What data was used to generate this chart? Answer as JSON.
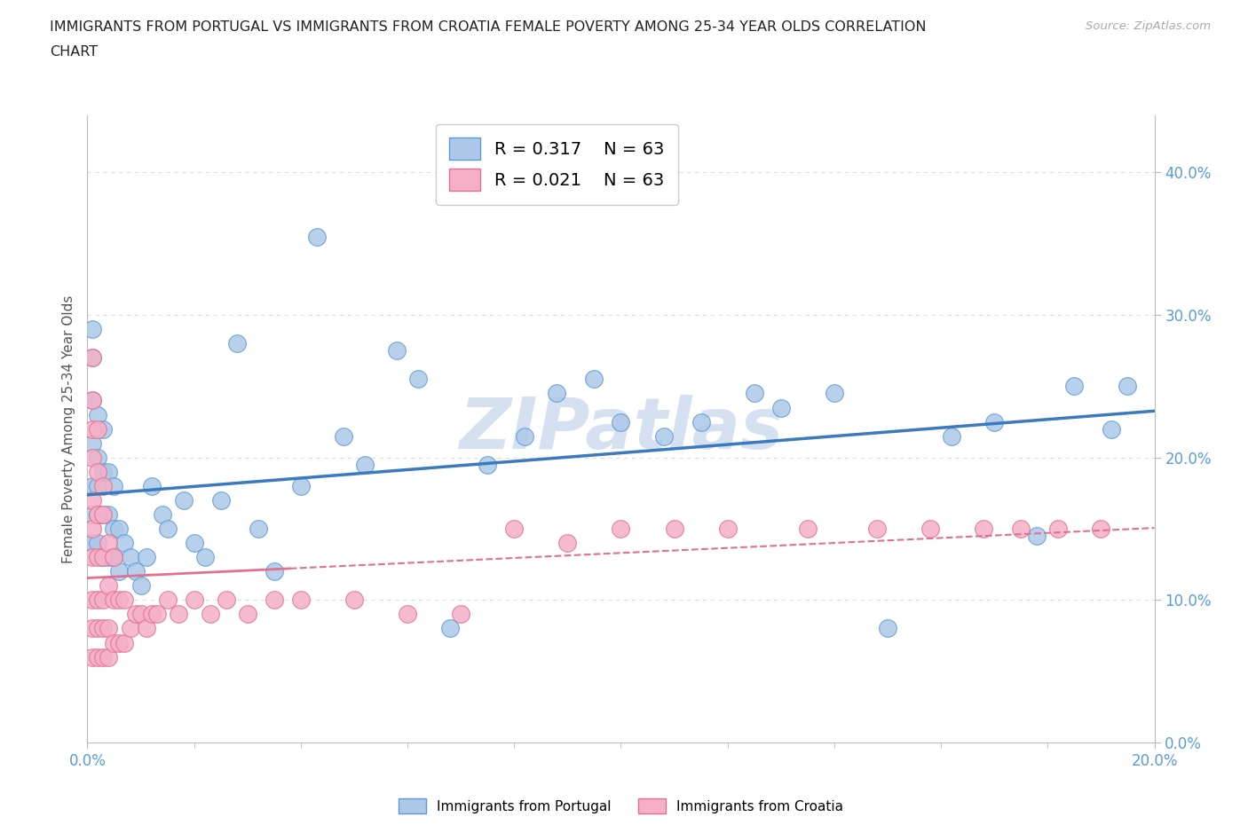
{
  "title_line1": "IMMIGRANTS FROM PORTUGAL VS IMMIGRANTS FROM CROATIA FEMALE POVERTY AMONG 25-34 YEAR OLDS CORRELATION",
  "title_line2": "CHART",
  "source_text": "Source: ZipAtlas.com",
  "ylabel": "Female Poverty Among 25-34 Year Olds",
  "xlim": [
    0.0,
    0.2
  ],
  "ylim": [
    0.0,
    0.44
  ],
  "xtick_vals": [
    0.0,
    0.2
  ],
  "xtick_labels": [
    "0.0%",
    "20.0%"
  ],
  "ytick_vals": [
    0.0,
    0.1,
    0.2,
    0.3,
    0.4
  ],
  "ytick_labels": [
    "0.0%",
    "10.0%",
    "20.0%",
    "30.0%",
    "40.0%"
  ],
  "R_portugal": 0.317,
  "R_croatia": 0.021,
  "N": 63,
  "portugal_color": "#adc8e8",
  "croatia_color": "#f5b0c8",
  "portugal_edge_color": "#5b9bd5",
  "croatia_edge_color": "#e07090",
  "portugal_line_color": "#3a7abf",
  "croatia_line_color": "#e07090",
  "grid_color": "#dddddd",
  "watermark_color": "#c8d8ec",
  "tick_color": "#5b9bd5",
  "portugal_x": [
    0.001,
    0.001,
    0.001,
    0.001,
    0.001,
    0.001,
    0.001,
    0.002,
    0.002,
    0.002,
    0.002,
    0.002,
    0.003,
    0.003,
    0.003,
    0.003,
    0.004,
    0.004,
    0.004,
    0.005,
    0.005,
    0.005,
    0.006,
    0.006,
    0.007,
    0.008,
    0.009,
    0.01,
    0.011,
    0.012,
    0.014,
    0.015,
    0.018,
    0.02,
    0.022,
    0.025,
    0.028,
    0.032,
    0.035,
    0.04,
    0.043,
    0.048,
    0.052,
    0.058,
    0.062,
    0.068,
    0.075,
    0.082,
    0.088,
    0.095,
    0.1,
    0.108,
    0.115,
    0.125,
    0.13,
    0.14,
    0.15,
    0.162,
    0.17,
    0.178,
    0.185,
    0.192,
    0.195
  ],
  "portugal_y": [
    0.14,
    0.16,
    0.18,
    0.21,
    0.24,
    0.27,
    0.29,
    0.14,
    0.16,
    0.18,
    0.2,
    0.23,
    0.13,
    0.16,
    0.19,
    0.22,
    0.13,
    0.16,
    0.19,
    0.13,
    0.15,
    0.18,
    0.12,
    0.15,
    0.14,
    0.13,
    0.12,
    0.11,
    0.13,
    0.18,
    0.16,
    0.15,
    0.17,
    0.14,
    0.13,
    0.17,
    0.28,
    0.15,
    0.12,
    0.18,
    0.355,
    0.215,
    0.195,
    0.275,
    0.255,
    0.08,
    0.195,
    0.215,
    0.245,
    0.255,
    0.225,
    0.215,
    0.225,
    0.245,
    0.235,
    0.245,
    0.08,
    0.215,
    0.225,
    0.145,
    0.25,
    0.22,
    0.25
  ],
  "croatia_x": [
    0.001,
    0.001,
    0.001,
    0.001,
    0.001,
    0.001,
    0.001,
    0.001,
    0.001,
    0.001,
    0.002,
    0.002,
    0.002,
    0.002,
    0.002,
    0.002,
    0.002,
    0.003,
    0.003,
    0.003,
    0.003,
    0.003,
    0.003,
    0.004,
    0.004,
    0.004,
    0.004,
    0.005,
    0.005,
    0.005,
    0.006,
    0.006,
    0.007,
    0.007,
    0.008,
    0.009,
    0.01,
    0.011,
    0.012,
    0.013,
    0.015,
    0.017,
    0.02,
    0.023,
    0.026,
    0.03,
    0.035,
    0.04,
    0.05,
    0.06,
    0.07,
    0.08,
    0.09,
    0.1,
    0.11,
    0.12,
    0.135,
    0.148,
    0.158,
    0.168,
    0.175,
    0.182,
    0.19
  ],
  "croatia_y": [
    0.06,
    0.08,
    0.1,
    0.13,
    0.15,
    0.17,
    0.2,
    0.22,
    0.24,
    0.27,
    0.06,
    0.08,
    0.1,
    0.13,
    0.16,
    0.19,
    0.22,
    0.06,
    0.08,
    0.1,
    0.13,
    0.16,
    0.18,
    0.06,
    0.08,
    0.11,
    0.14,
    0.07,
    0.1,
    0.13,
    0.07,
    0.1,
    0.07,
    0.1,
    0.08,
    0.09,
    0.09,
    0.08,
    0.09,
    0.09,
    0.1,
    0.09,
    0.1,
    0.09,
    0.1,
    0.09,
    0.1,
    0.1,
    0.1,
    0.09,
    0.09,
    0.15,
    0.14,
    0.15,
    0.15,
    0.15,
    0.15,
    0.15,
    0.15,
    0.15,
    0.15,
    0.15,
    0.15
  ]
}
